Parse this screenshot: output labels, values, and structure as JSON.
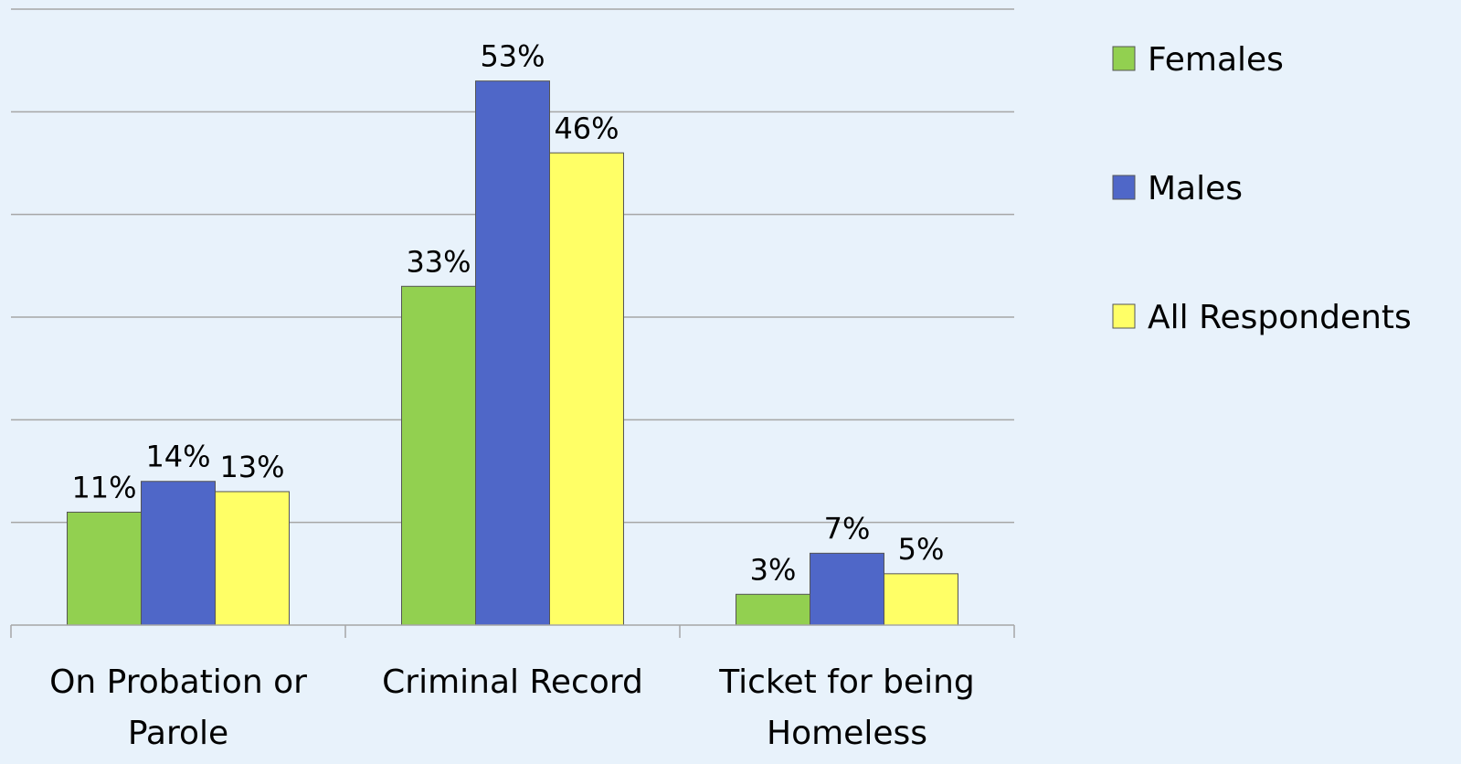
{
  "chart_data": {
    "type": "bar",
    "categories": [
      [
        "On Probation or",
        "Parole"
      ],
      [
        "Criminal Record"
      ],
      [
        "Ticket for being",
        "Homeless"
      ]
    ],
    "series": [
      {
        "name": "Females",
        "values": [
          11,
          33,
          3
        ],
        "labels": [
          "11%",
          "33%",
          "3%"
        ],
        "color": "#92d050"
      },
      {
        "name": "Males",
        "values": [
          14,
          53,
          7
        ],
        "labels": [
          "14%",
          "53%",
          "7%"
        ],
        "color": "#4f67c8"
      },
      {
        "name": "All Respondents",
        "values": [
          13,
          46,
          5
        ],
        "labels": [
          "13%",
          "46%",
          "5%"
        ],
        "color": "#ffff66"
      }
    ],
    "ylim": [
      0,
      60
    ],
    "grid": true,
    "legend_position": "right",
    "colors": {
      "background": "#e8f2fb",
      "gridline": "#a6a6a6",
      "bar_border": "#555555"
    }
  }
}
